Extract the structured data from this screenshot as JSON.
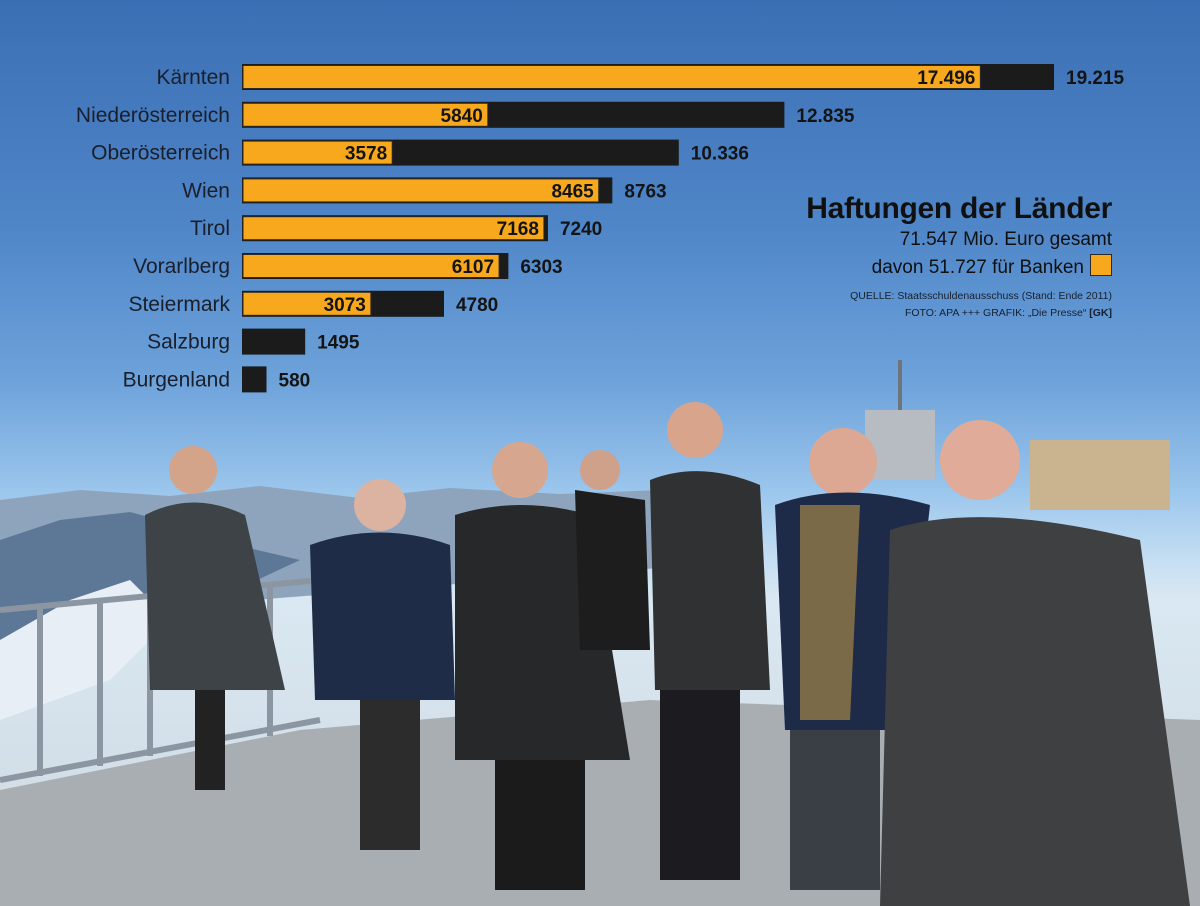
{
  "colors": {
    "banks": "#f7a81c",
    "total": "#1b1b1b"
  },
  "legend": {
    "title": "Haftungen der Länder",
    "total_line": "71.547 Mio. Euro gesamt",
    "banks_line": "davon 51.727 für Banken",
    "source": "QUELLE: Staatsschuldenausschuss (Stand: Ende 2011)",
    "credit": "FOTO: APA +++ GRAFIK: „Die Presse“",
    "credit_tag": "[GK]"
  },
  "chart_data": {
    "type": "bar",
    "orientation": "horizontal",
    "categories": [
      "Kärnten",
      "Niederösterreich",
      "Oberösterreich",
      "Wien",
      "Tirol",
      "Vorarlberg",
      "Steiermark",
      "Salzburg",
      "Burgenland"
    ],
    "series": [
      {
        "values": [
          19215,
          12835,
          10336,
          8763,
          7240,
          6303,
          4780,
          1495,
          580
        ],
        "labels": [
          "19.215",
          "12.835",
          "10.336",
          "8763",
          "7240",
          "6303",
          "4780",
          "1495",
          "580"
        ]
      },
      {
        "values": [
          17496,
          5840,
          3578,
          8465,
          7168,
          6107,
          3073,
          null,
          null
        ],
        "labels": [
          "17.496",
          "5840",
          "3578",
          "8465",
          "7168",
          "6107",
          "3073",
          "",
          ""
        ]
      }
    ],
    "xlim": [
      0,
      19215
    ],
    "grid": false
  }
}
